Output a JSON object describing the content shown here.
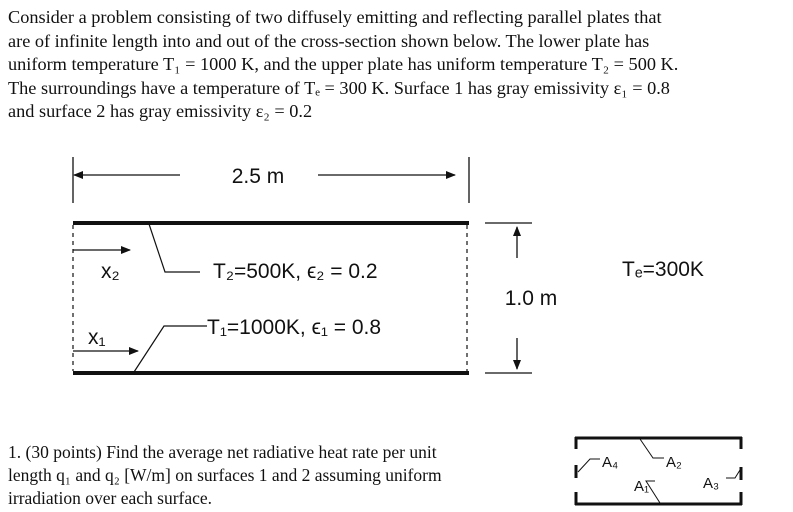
{
  "problem": {
    "lines": [
      "Consider a problem consisting of two diffusely emitting and reflecting parallel plates that",
      "are of infinite length into and out of the cross-section shown below. The lower plate has",
      "uniform temperature T₁ = 1000 K, and the upper plate has uniform temperature T₂ = 500 K.",
      "The surroundings  have a temperature of Tₑ = 300 K. Surface 1 has gray emissivity ε₁ = 0.8",
      "and surface 2 has gray emissivity ε₂ = 0.2"
    ]
  },
  "diagram": {
    "width_label": "2.5 m",
    "height_label": "1.0 m",
    "x2_label": "x₂",
    "x1_label": "x₁",
    "plate2_label": "T₂=500K, ϵ₂ = 0.2",
    "plate1_label": "T₁=1000K, ϵ₁ = 0.8",
    "surroundings_label": "Tₑ=300K"
  },
  "question": {
    "lines": [
      "1. (30 points) Find the average net radiative heat rate per unit",
      "length q₁ and q₂ [W/m] on surfaces 1 and 2 assuming uniform",
      "irradiation over each surface."
    ]
  },
  "small_diagram": {
    "a1": "A₁",
    "a2": "A₂",
    "a3": "A₃",
    "a4": "A₄"
  }
}
